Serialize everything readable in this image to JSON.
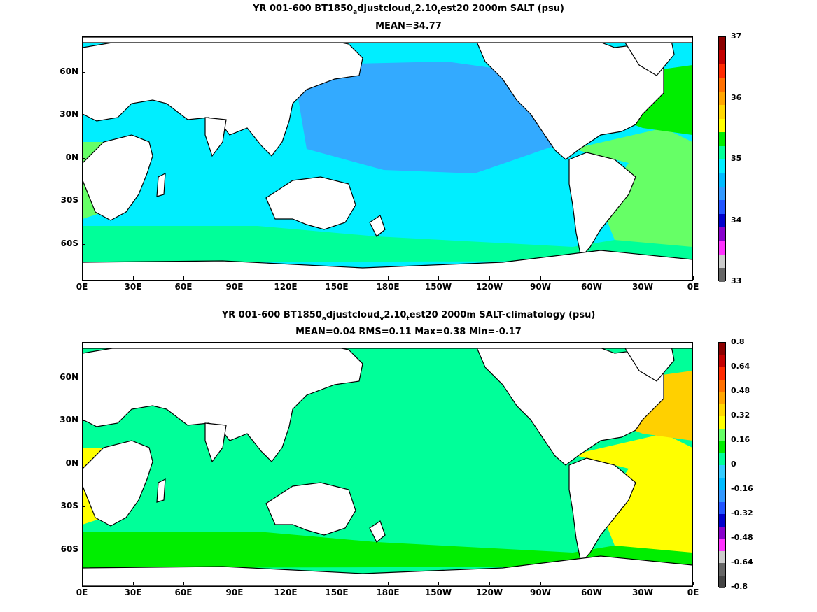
{
  "panels": [
    {
      "title_parts": [
        "YR 001-600 BT1850",
        "a",
        "djustcloud",
        "v",
        "2.10",
        "t",
        "est20 2000m SALT (psu)"
      ],
      "stats": "MEAN=34.77",
      "colorbar": {
        "ticks": [
          "37",
          "36",
          "35",
          "34",
          "33"
        ],
        "colors": [
          "#8b0000",
          "#c40000",
          "#ff2a00",
          "#ff7000",
          "#ffa500",
          "#ffd700",
          "#ffff00",
          "#00ee00",
          "#00ff99",
          "#00eeff",
          "#00bbff",
          "#3399ff",
          "#2255ff",
          "#0000cc",
          "#8800cc",
          "#ff33ff",
          "#cccccc",
          "#666666"
        ]
      },
      "fill": {
        "sea": "#00eeff",
        "pacific": "#33aaff",
        "atlantic": "#66ff66",
        "north_atlantic": "#00ee00",
        "southern": "#00ff99"
      }
    },
    {
      "title_parts": [
        "YR 001-600 BT1850",
        "a",
        "djustcloud",
        "v",
        "2.10",
        "t",
        "est20 2000m SALT-climatology (psu)"
      ],
      "stats": "MEAN=0.04   RMS=0.11   Max=0.38   Min=-0.17",
      "colorbar": {
        "ticks": [
          "0.8",
          "0.64",
          "0.48",
          "0.32",
          "0.16",
          "0",
          "-0.16",
          "-0.32",
          "-0.48",
          "-0.64",
          "-0.8"
        ],
        "colors": [
          "#8b0000",
          "#c40000",
          "#ff2a00",
          "#ff7000",
          "#ffa500",
          "#ffd700",
          "#ffff00",
          "#66ff66",
          "#00ee00",
          "#00ff99",
          "#33ccff",
          "#00bbff",
          "#3399ff",
          "#2255ff",
          "#0000cc",
          "#8800cc",
          "#ff33ff",
          "#cccccc",
          "#666666",
          "#444444"
        ]
      },
      "fill": {
        "sea": "#00ff99",
        "pacific": "#00ff99",
        "atlantic": "#ffff00",
        "north_atlantic": "#ffd000",
        "southern": "#00ee00"
      }
    }
  ],
  "lat_labels": [
    "60N",
    "30N",
    "0N",
    "30S",
    "60S"
  ],
  "lon_labels": [
    "0E",
    "30E",
    "60E",
    "90E",
    "120E",
    "150E",
    "180E",
    "150W",
    "120W",
    "90W",
    "60W",
    "30W",
    "0E"
  ]
}
